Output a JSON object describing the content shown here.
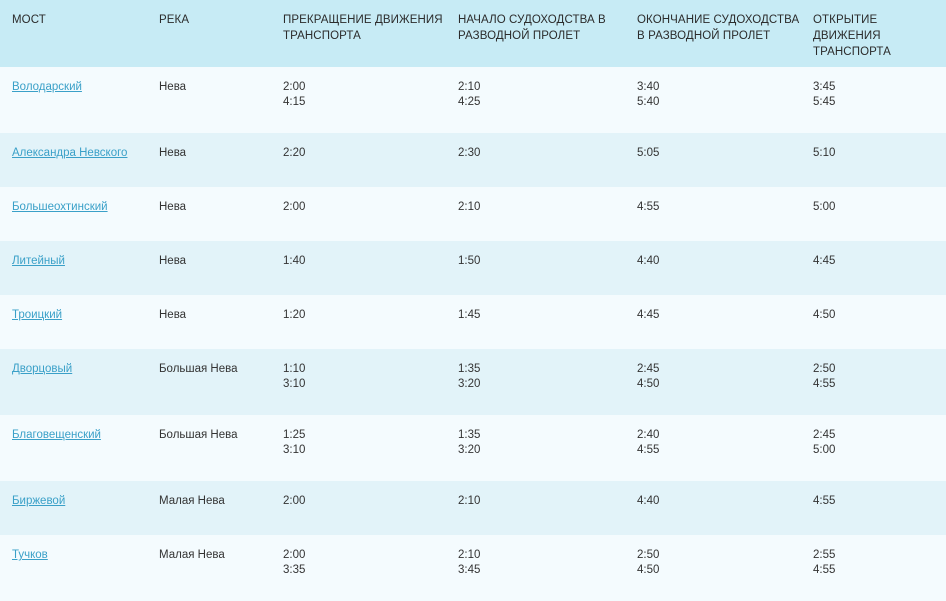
{
  "table": {
    "headers": [
      [
        "МОСТ"
      ],
      [
        "РЕКА"
      ],
      [
        "ПРЕКРАЩЕНИЕ ДВИЖЕНИЯ",
        "ТРАНСПОРТА"
      ],
      [
        "НАЧАЛО СУДОХОДСТВА В",
        "РАЗВОДНОЙ ПРОЛЕТ"
      ],
      [
        "ОКОНЧАНИЕ СУДОХОДСТВА",
        "В РАЗВОДНОЙ ПРОЛЕТ"
      ],
      [
        "ОТКРЫТИЕ ДВИЖЕНИЯ",
        "ТРАНСПОРТА"
      ]
    ],
    "rows": [
      {
        "bridge": "Володарский",
        "river": "Нева",
        "stop": [
          "2:00",
          "4:15"
        ],
        "ship_start": [
          "2:10",
          "4:25"
        ],
        "ship_end": [
          "3:40",
          "5:40"
        ],
        "open": [
          "3:45",
          "5:45"
        ]
      },
      {
        "bridge": "Александра Невского",
        "river": "Нева",
        "stop": [
          "2:20"
        ],
        "ship_start": [
          "2:30"
        ],
        "ship_end": [
          "5:05"
        ],
        "open": [
          "5:10"
        ]
      },
      {
        "bridge": "Большеохтинский",
        "river": "Нева",
        "stop": [
          "2:00"
        ],
        "ship_start": [
          "2:10"
        ],
        "ship_end": [
          "4:55"
        ],
        "open": [
          "5:00"
        ]
      },
      {
        "bridge": "Литейный",
        "river": "Нева",
        "stop": [
          "1:40"
        ],
        "ship_start": [
          "1:50"
        ],
        "ship_end": [
          "4:40"
        ],
        "open": [
          "4:45"
        ]
      },
      {
        "bridge": "Троицкий",
        "river": "Нева",
        "stop": [
          "1:20"
        ],
        "ship_start": [
          "1:45"
        ],
        "ship_end": [
          "4:45"
        ],
        "open": [
          "4:50"
        ]
      },
      {
        "bridge": "Дворцовый",
        "river": "Большая Нева",
        "stop": [
          "1:10",
          "3:10"
        ],
        "ship_start": [
          "1:35",
          "3:20"
        ],
        "ship_end": [
          "2:45",
          "4:50"
        ],
        "open": [
          "2:50",
          "4:55"
        ]
      },
      {
        "bridge": "Благовещенский",
        "river": "Большая Нева",
        "stop": [
          "1:25",
          "3:10"
        ],
        "ship_start": [
          "1:35",
          "3:20"
        ],
        "ship_end": [
          "2:40",
          "4:55"
        ],
        "open": [
          "2:45",
          "5:00"
        ]
      },
      {
        "bridge": "Биржевой",
        "river": "Малая Нева",
        "stop": [
          "2:00"
        ],
        "ship_start": [
          "2:10"
        ],
        "ship_end": [
          "4:40"
        ],
        "open": [
          "4:55"
        ]
      },
      {
        "bridge": "Тучков",
        "river": "Малая Нева",
        "stop": [
          "2:00",
          "3:35"
        ],
        "ship_start": [
          "2:10",
          "3:45"
        ],
        "ship_end": [
          "2:50",
          "4:50"
        ],
        "open": [
          "2:55",
          "4:55"
        ]
      }
    ]
  },
  "colors": {
    "header_bg": "#c7ebf5",
    "row_light": "#f4fbfe",
    "row_dark": "#e2f3f9",
    "link": "#3aa0c8"
  }
}
